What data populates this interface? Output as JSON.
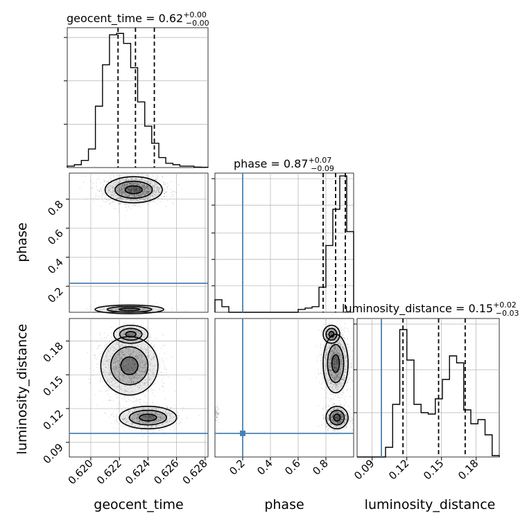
{
  "chart_data": [
    {
      "type": "histogram",
      "name": "geocent_time marginal",
      "title": "geocent_time = 0.62",
      "title_sup": "+0.00",
      "title_sub": "−0.00",
      "xlim": [
        0.6185,
        0.6282
      ],
      "bins": [
        0.6185,
        0.61899,
        0.61947,
        0.61996,
        0.62044,
        0.62093,
        0.62141,
        0.6219,
        0.62238,
        0.62287,
        0.62335,
        0.62384,
        0.62432,
        0.62481,
        0.62529,
        0.62578,
        0.62626,
        0.62675,
        0.62723,
        0.62772,
        0.6282
      ],
      "counts": [
        0.01,
        0.02,
        0.05,
        0.13,
        0.43,
        0.72,
        0.93,
        0.94,
        0.87,
        0.7,
        0.46,
        0.29,
        0.17,
        0.07,
        0.03,
        0.02,
        0.01,
        0.01,
        0.003,
        0.002
      ],
      "quantiles": [
        0.622,
        0.6232,
        0.6245
      ]
    },
    {
      "type": "histogram",
      "name": "phase marginal",
      "title": "phase = 0.87",
      "title_sup": "+0.07",
      "title_sub": "−0.09",
      "xlim": [
        0.0,
        1.0
      ],
      "bins": [
        0.0,
        0.05,
        0.1,
        0.15,
        0.2,
        0.25,
        0.3,
        0.35,
        0.4,
        0.45,
        0.5,
        0.55,
        0.6,
        0.65,
        0.7,
        0.75,
        0.8,
        0.85,
        0.9,
        0.95,
        1.0
      ],
      "counts": [
        0.09,
        0.04,
        0.0,
        0.0,
        0.0,
        0.0,
        0.0,
        0.0,
        0.0,
        0.0,
        0.0,
        0.0,
        0.02,
        0.03,
        0.04,
        0.18,
        0.48,
        0.74,
        0.98,
        0.58
      ],
      "quantiles": [
        0.78,
        0.87,
        0.94
      ],
      "truth": 0.2,
      "xticks": [
        0.2,
        0.4,
        0.6,
        0.8
      ]
    },
    {
      "type": "histogram",
      "name": "luminosity_distance marginal",
      "title": "luminosity_distance = 0.15",
      "title_sup": "+0.02",
      "title_sub": "−0.03",
      "xlim": [
        0.077,
        0.2
      ],
      "bins": [
        0.077,
        0.08315,
        0.0893,
        0.09545,
        0.1016,
        0.10775,
        0.1139,
        0.12005,
        0.1262,
        0.13235,
        0.1385,
        0.14465,
        0.1508,
        0.15695,
        0.1631,
        0.16925,
        0.1754,
        0.18155,
        0.1877,
        0.19385,
        0.2
      ],
      "counts": [
        0.0,
        0.0,
        0.0,
        0.0,
        0.07,
        0.38,
        0.92,
        0.7,
        0.38,
        0.32,
        0.31,
        0.42,
        0.56,
        0.73,
        0.68,
        0.34,
        0.24,
        0.27,
        0.16,
        0.01
      ],
      "quantiles": [
        0.1167,
        0.1475,
        0.1705
      ],
      "truth": 0.098,
      "xticks": [
        0.09,
        0.12,
        0.15,
        0.18
      ]
    },
    {
      "type": "scatter",
      "name": "phase vs geocent_time",
      "xlim": [
        0.6185,
        0.6282
      ],
      "ylim": [
        0.02,
        0.98
      ],
      "truth_y": 0.22,
      "modes": [
        {
          "x": 0.623,
          "y": 0.865,
          "sx": 0.001,
          "sy": 0.045,
          "n": 2000
        },
        {
          "x": 0.6227,
          "y": 0.04,
          "sx": 0.0012,
          "sy": 0.015,
          "n": 220
        }
      ],
      "yticks": [
        0.2,
        0.4,
        0.6,
        0.8
      ],
      "xticks": [
        0.62,
        0.622,
        0.624,
        0.626,
        0.628
      ]
    },
    {
      "type": "scatter",
      "name": "luminosity_distance vs geocent_time",
      "xlim": [
        0.6185,
        0.6282
      ],
      "ylim": [
        0.077,
        0.2
      ],
      "truth_y": 0.098,
      "modes": [
        {
          "x": 0.6227,
          "y": 0.158,
          "sx": 0.001,
          "sy": 0.013,
          "n": 1600
        },
        {
          "x": 0.624,
          "y": 0.112,
          "sx": 0.001,
          "sy": 0.005,
          "n": 1000
        },
        {
          "x": 0.6228,
          "y": 0.186,
          "sx": 0.0006,
          "sy": 0.004,
          "n": 280
        }
      ],
      "yticks": [
        0.09,
        0.12,
        0.15,
        0.18
      ],
      "xticks": [
        0.62,
        0.622,
        0.624,
        0.626,
        0.628
      ]
    },
    {
      "type": "scatter",
      "name": "luminosity_distance vs phase",
      "xlim": [
        0.0,
        1.0
      ],
      "ylim": [
        0.077,
        0.2
      ],
      "truth_x": 0.2,
      "truth_y": 0.098,
      "modes": [
        {
          "x": 0.87,
          "y": 0.16,
          "sx": 0.045,
          "sy": 0.013,
          "n": 1600
        },
        {
          "x": 0.88,
          "y": 0.112,
          "sx": 0.04,
          "sy": 0.005,
          "n": 1000
        },
        {
          "x": 0.84,
          "y": 0.186,
          "sx": 0.03,
          "sy": 0.004,
          "n": 250
        },
        {
          "x": 0.01,
          "y": 0.115,
          "sx": 0.01,
          "sy": 0.005,
          "n": 70
        }
      ],
      "xticks": [
        0.2,
        0.4,
        0.6,
        0.8
      ]
    }
  ],
  "labels": {
    "x_geocent_time": "geocent_time",
    "x_phase": "phase",
    "x_luminosity_distance": "luminosity_distance",
    "y_phase": "phase",
    "y_luminosity_distance": "luminosity_distance"
  },
  "colors": {
    "truth": "#4682b4",
    "hist": "#000000",
    "grid": "#b0b0b0",
    "points": "#000000"
  }
}
